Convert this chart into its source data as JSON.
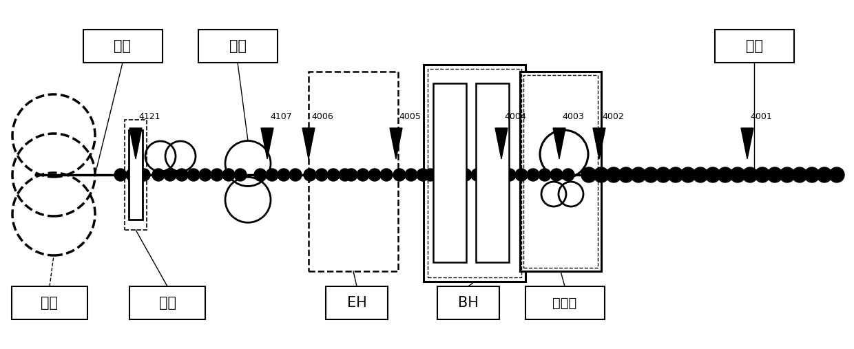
{
  "fig_width": 12.4,
  "fig_height": 5.07,
  "dpi": 100,
  "bg_color": "#ffffff",
  "line_color": "#000000",
  "xlim": [
    0,
    1240
  ],
  "ylim": [
    0,
    507
  ],
  "conveyor_y": 253
}
